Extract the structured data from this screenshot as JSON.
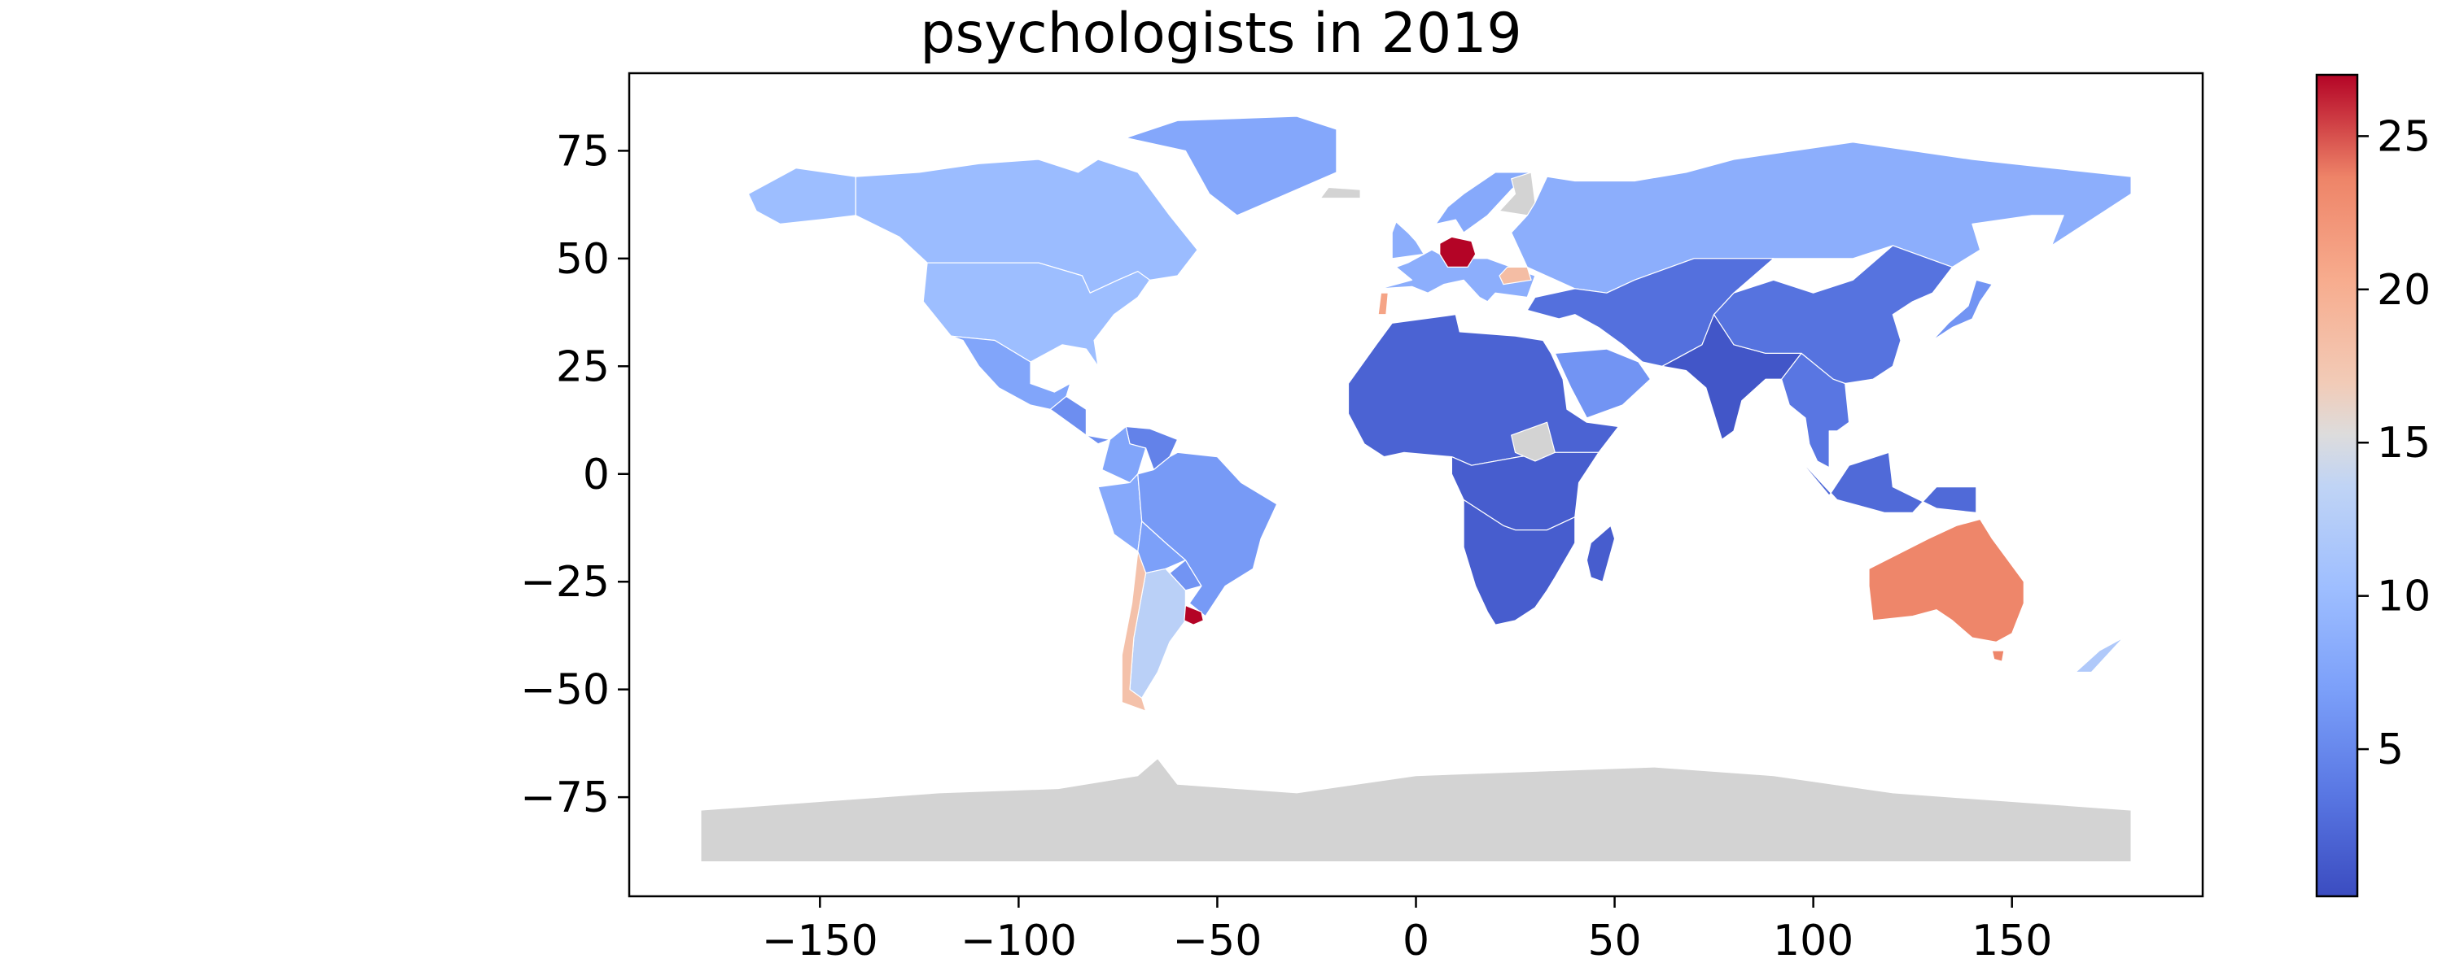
{
  "chart_data": {
    "type": "choropleth",
    "title": "psychologists in 2019",
    "xlabel": "",
    "ylabel": "",
    "x_ticks": [
      -150,
      -100,
      -50,
      0,
      50,
      100,
      150
    ],
    "y_ticks": [
      75,
      50,
      25,
      0,
      -25,
      -50,
      -75
    ],
    "xlim": [
      -198,
      198
    ],
    "ylim": [
      -98,
      93
    ],
    "colorbar": {
      "min": 0.2,
      "max": 27,
      "ticks": [
        5,
        10,
        15,
        20,
        25
      ],
      "colormap": "coolwarm"
    },
    "missing_color": "#d3d3d3",
    "regions": [
      {
        "name": "Canada",
        "value": 10.0
      },
      {
        "name": "United States",
        "value": 10.2
      },
      {
        "name": "Alaska",
        "value": 10.2
      },
      {
        "name": "Greenland",
        "value": 7.8
      },
      {
        "name": "Mexico",
        "value": 7.5
      },
      {
        "name": "Central America",
        "value": 5.5
      },
      {
        "name": "Venezuela",
        "value": 4.5
      },
      {
        "name": "Colombia",
        "value": 7.5
      },
      {
        "name": "Peru",
        "value": 8.0
      },
      {
        "name": "Brazil",
        "value": 6.5
      },
      {
        "name": "Bolivia",
        "value": 7.0
      },
      {
        "name": "Paraguay",
        "value": 6.0
      },
      {
        "name": "Argentina",
        "value": 13.0
      },
      {
        "name": "Chile",
        "value": 18.0
      },
      {
        "name": "Uruguay",
        "value": 27.0
      },
      {
        "name": "Western Europe",
        "value": 8.5
      },
      {
        "name": "Germany",
        "value": 27.0
      },
      {
        "name": "Portugal",
        "value": 21.0
      },
      {
        "name": "Romania",
        "value": 18.5
      },
      {
        "name": "Scandinavia",
        "value": 8.0
      },
      {
        "name": "Russia",
        "value": 8.5
      },
      {
        "name": "North Africa",
        "value": 2.0
      },
      {
        "name": "Central Africa",
        "value": 1.5
      },
      {
        "name": "Southern Africa",
        "value": 1.5
      },
      {
        "name": "Madagascar",
        "value": 1.5
      },
      {
        "name": "Saudi Arabia",
        "value": 6.0
      },
      {
        "name": "Central Asia",
        "value": 3.0
      },
      {
        "name": "South Asia",
        "value": 1.0
      },
      {
        "name": "China",
        "value": 3.2
      },
      {
        "name": "Japan",
        "value": 6.0
      },
      {
        "name": "Southeast Asia",
        "value": 3.5
      },
      {
        "name": "Indonesia",
        "value": 2.5
      },
      {
        "name": "Australia",
        "value": 23.5
      },
      {
        "name": "New Zealand",
        "value": 12.0
      },
      {
        "name": "South Sudan",
        "value": null
      },
      {
        "name": "Finland",
        "value": null
      },
      {
        "name": "Iceland",
        "value": null
      },
      {
        "name": "Antarctica",
        "value": null
      }
    ]
  }
}
